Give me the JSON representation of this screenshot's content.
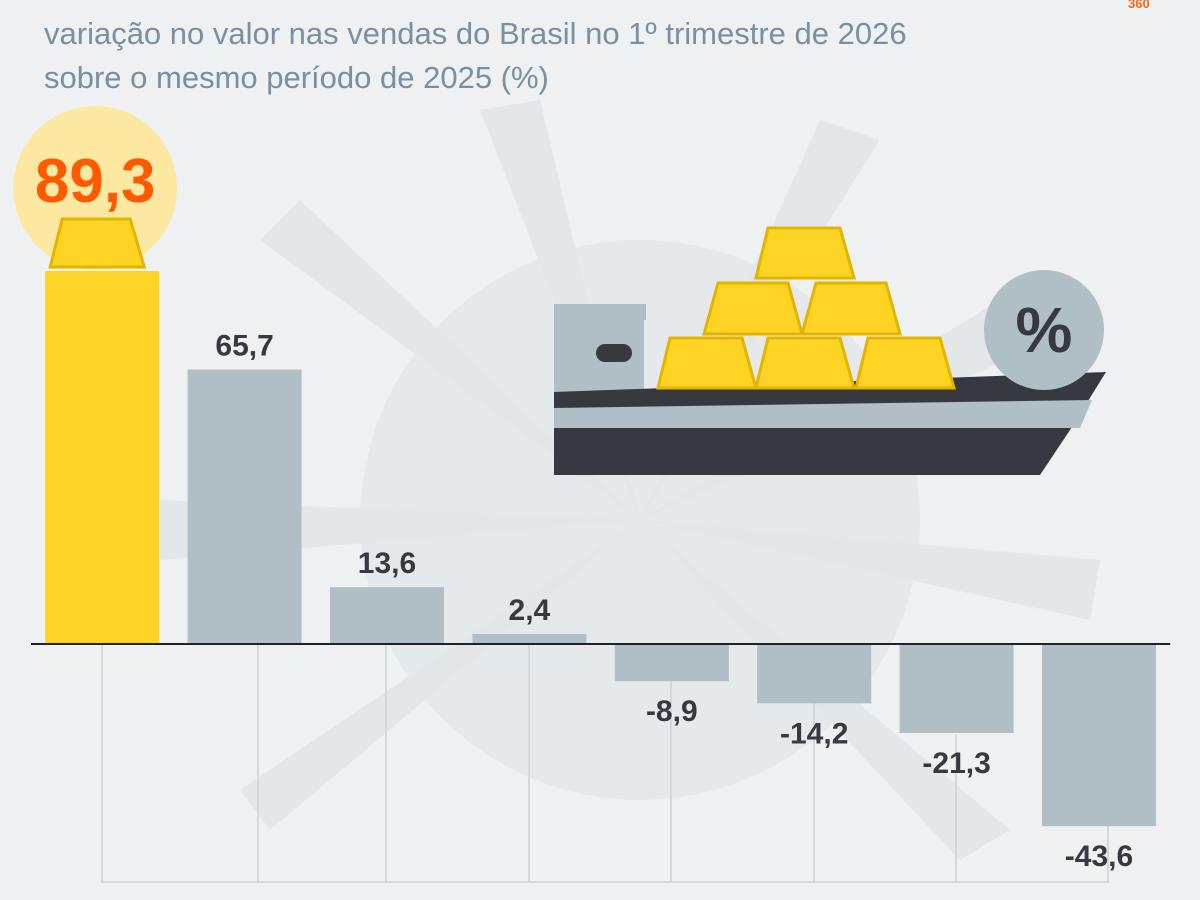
{
  "logo": "360",
  "chart_data": {
    "type": "bar",
    "title": "variação no valor nas vendas do Brasil no 1º trimestre de 2026 sobre o mesmo período de 2025 (%)",
    "categories": [
      null,
      null,
      null,
      null,
      null,
      null,
      null,
      null
    ],
    "values": [
      89.3,
      65.7,
      13.6,
      2.4,
      -8.9,
      -14.2,
      -21.3,
      -43.6
    ],
    "value_labels": [
      "89,3",
      "65,7",
      "13,6",
      "2,4",
      "-8,9",
      "-14,2",
      "-21,3",
      "-43,6"
    ],
    "colors": [
      "#fdd424",
      "#b0bec5",
      "#b0bec5",
      "#b0bec5",
      "#b0bec5",
      "#b0bec5",
      "#b0bec5",
      "#b0bec5"
    ]
  }
}
